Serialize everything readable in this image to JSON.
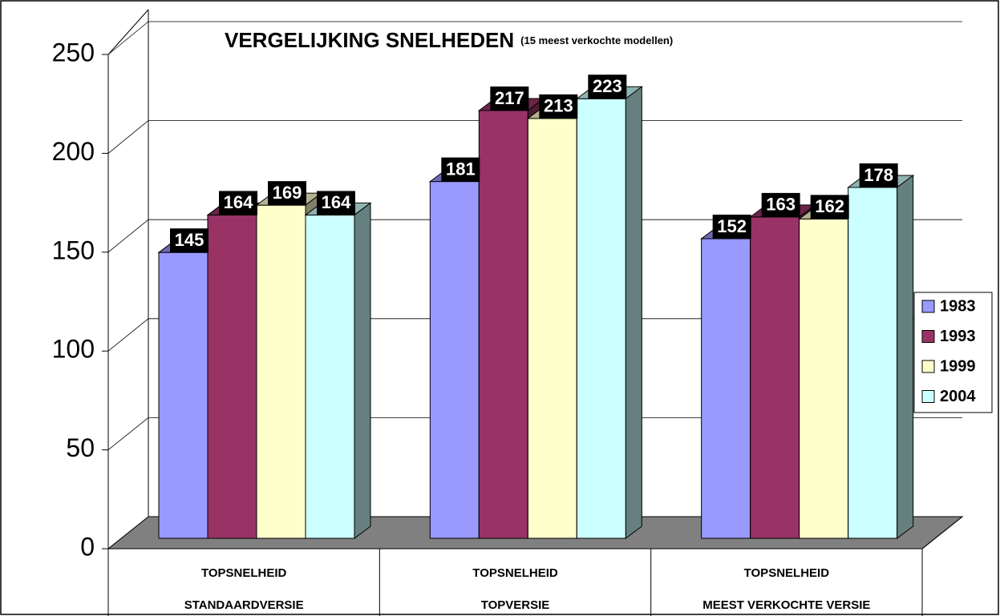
{
  "chart_data": {
    "type": "bar3d",
    "title": "VERGELIJKING SNELHEDEN",
    "subtitle": "(15 meest verkochte modellen)",
    "categories": [
      [
        "TOPSNELHEID",
        "STANDAARDVERSIE"
      ],
      [
        "TOPSNELHEID",
        "TOPVERSIE"
      ],
      [
        "TOPSNELHEID",
        "MEEST VERKOCHTE VERSIE"
      ]
    ],
    "series": [
      {
        "name": "1983",
        "color": "#9999ff",
        "values": [
          145,
          181,
          152
        ]
      },
      {
        "name": "1993",
        "color": "#993366",
        "values": [
          164,
          217,
          163
        ]
      },
      {
        "name": "1999",
        "color": "#ffffcc",
        "values": [
          169,
          213,
          162
        ]
      },
      {
        "name": "2004",
        "color": "#ccffff",
        "values": [
          164,
          223,
          178
        ]
      }
    ],
    "ylim": [
      0,
      250
    ],
    "yticks": [
      0,
      50,
      100,
      150,
      200,
      250
    ],
    "grid": true,
    "legend": "right"
  }
}
